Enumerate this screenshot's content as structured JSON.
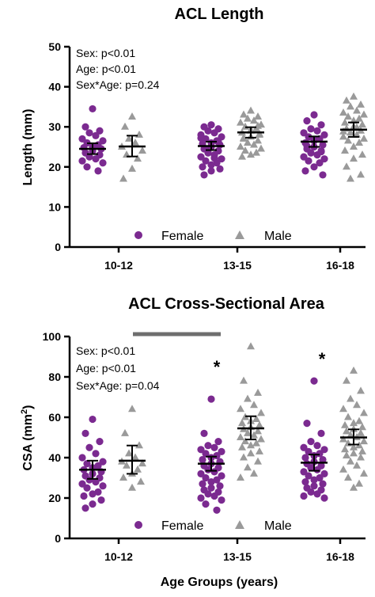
{
  "colors": {
    "female": "#7B2A90",
    "male": "#9A9A9A",
    "axis": "#000000",
    "bracket": "#6E6E6E"
  },
  "legend": {
    "female_label": "Female",
    "male_label": "Male",
    "female_icon": "filled-circle",
    "male_icon": "filled-triangle"
  },
  "xlabel": "Age Groups (years)",
  "chart_data": [
    {
      "type": "scatter",
      "title": "ACL Length",
      "ylabel": "Length (mm)",
      "ylim": [
        0,
        50
      ],
      "yticks": [
        "0",
        "10",
        "20",
        "30",
        "40",
        "50"
      ],
      "categories": [
        "10-12",
        "13-15",
        "16-18"
      ],
      "stats": [
        "Sex: p<0.01",
        "Age: p<0.01",
        "Sex*Age: p=0.24"
      ],
      "legend_placement": "bottom-center",
      "series": [
        {
          "name": "Female",
          "mean": [
            24.5,
            25.2,
            26.3
          ],
          "ci": [
            [
              23.2,
              25.9
            ],
            [
              24.2,
              26.3
            ],
            [
              25.0,
              27.6
            ]
          ],
          "points": [
            [
              34.5,
              30,
              29,
              28.5,
              27.8,
              27,
              26.5,
              26,
              25.5,
              25,
              24.8,
              24.5,
              24,
              23.5,
              23,
              22.5,
              22,
              21.5,
              21,
              20,
              19
            ],
            [
              30.5,
              30,
              29.5,
              29,
              28.5,
              28,
              27.5,
              27,
              26.5,
              26,
              25.8,
              25.5,
              25,
              24.5,
              24,
              23.5,
              23,
              22.5,
              22,
              21.5,
              21,
              20.5,
              20,
              19.5,
              19,
              18,
              26.2,
              24.2,
              22.2,
              27.2
            ],
            [
              33,
              31.5,
              30.5,
              29.5,
              29,
              28.5,
              28,
              27.5,
              27,
              26.5,
              26,
              25.5,
              25,
              24.5,
              24,
              23.5,
              23,
              22.5,
              22,
              21.5,
              21,
              20,
              19,
              18,
              26.8,
              25.2,
              23.8
            ]
          ]
        },
        {
          "name": "Male",
          "mean": [
            25.1,
            28.6,
            29.3
          ],
          "ci": [
            [
              22.6,
              27.8
            ],
            [
              27.3,
              29.9
            ],
            [
              27.5,
              31.1
            ]
          ],
          "points": [
            [
              32.5,
              30,
              28,
              27,
              26,
              25,
              24,
              23,
              22,
              19.5,
              17
            ],
            [
              34,
              33,
              32.5,
              32,
              31.5,
              31,
              30.5,
              30,
              29.5,
              29,
              28.5,
              28,
              27.5,
              27,
              26.5,
              26,
              25.5,
              25,
              24.5,
              24,
              23.5,
              23,
              22.5,
              28.2,
              29.2,
              27.2,
              30.2
            ],
            [
              37.5,
              36.5,
              35.5,
              35,
              34,
              33.5,
              33,
              32.5,
              32,
              31.5,
              31,
              30.5,
              30,
              29.5,
              29,
              28.5,
              28,
              27.5,
              27,
              26.5,
              26,
              25,
              24,
              23,
              22,
              20,
              18,
              17,
              29.8,
              28.8
            ]
          ]
        }
      ]
    },
    {
      "type": "scatter",
      "title": "ACL Cross-Sectional Area",
      "ylabel_main": "CSA (mm",
      "ylabel_sup": "2",
      "ylabel_close": ")",
      "ylim": [
        0,
        100
      ],
      "yticks": [
        "0",
        "20",
        "40",
        "60",
        "80",
        "100"
      ],
      "categories": [
        "10-12",
        "13-15",
        "16-18"
      ],
      "stats": [
        "Sex: p<0.01",
        "Age: p<0.01",
        "Sex*Age: p=0.04"
      ],
      "annotations": [
        "*",
        "*"
      ],
      "annotation_categories": [
        "13-15",
        "16-18"
      ],
      "legend_placement": "bottom-center",
      "series": [
        {
          "name": "Female",
          "mean": [
            34,
            37,
            37.5
          ],
          "ci": [
            [
              29.5,
              38.5
            ],
            [
              33.5,
              40.5
            ],
            [
              33.5,
              41.5
            ]
          ],
          "points": [
            [
              59,
              52,
              48,
              45,
              42,
              40,
              38,
              37,
              36,
              35,
              34,
              33,
              32,
              31,
              30,
              29,
              28,
              27,
              26,
              25,
              23,
              22,
              21,
              19,
              17,
              15
            ],
            [
              69,
              52,
              48,
              46,
              45,
              44,
              43,
              42,
              41,
              40,
              39,
              38,
              37,
              36,
              35,
              34,
              33,
              32,
              31,
              30,
              29,
              28,
              27,
              26,
              25,
              24,
              23,
              22,
              21,
              20,
              19,
              17,
              14
            ],
            [
              78,
              57,
              52,
              48,
              46,
              45,
              44,
              43,
              42,
              41,
              40,
              39,
              38,
              37,
              36,
              35,
              34,
              33,
              32,
              31,
              30,
              29,
              28,
              27,
              26,
              25,
              24,
              23,
              22,
              21,
              20
            ]
          ]
        },
        {
          "name": "Male",
          "mean": [
            38.5,
            54.5,
            50
          ],
          "ci": [
            [
              32,
              46
            ],
            [
              49,
              60.5
            ],
            [
              46.5,
              54
            ]
          ],
          "points": [
            [
              64,
              52,
              46,
              42,
              40,
              38,
              37,
              36,
              34,
              32,
              30,
              28,
              25
            ],
            [
              95,
              78,
              72,
              69,
              66,
              64,
              62,
              60,
              59,
              58,
              57,
              56,
              55,
              54,
              53,
              52,
              51,
              50,
              49,
              48,
              47,
              46,
              45,
              43,
              42,
              40,
              38,
              35,
              32,
              30
            ],
            [
              83,
              78,
              73,
              69,
              66,
              64,
              62,
              60,
              58,
              57,
              56,
              55,
              54,
              53,
              52,
              51,
              50,
              49,
              48,
              47,
              46,
              45,
              44,
              43,
              42,
              41,
              40,
              38,
              36,
              34,
              32,
              30,
              27,
              25
            ]
          ]
        }
      ]
    }
  ]
}
